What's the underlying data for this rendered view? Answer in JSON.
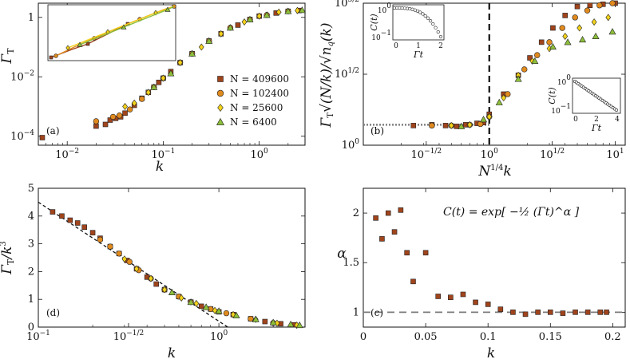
{
  "colors": {
    "N409600": "#a0441c",
    "N102400": "#e08a1e",
    "N25600": "#f3d21a",
    "N6400": "#8dbf3a",
    "markerEdge": "#222222",
    "dotted": "#808080",
    "dashed_c": "#7a7a7a"
  },
  "chart_data": [
    {
      "id": "a",
      "panel_label": "(a)",
      "type": "scatter",
      "xscale": "log",
      "yscale": "log",
      "xlim": [
        0.005,
        3.0
      ],
      "ylim": [
        5e-05,
        3.0
      ],
      "xlabel": "k",
      "ylabel": "Γ_T",
      "xticks": [
        0.01,
        0.1,
        1
      ],
      "xtick_labels": [
        "10^{-2}",
        "10^{-1}",
        "10^{0}"
      ],
      "yticks": [
        0.0001,
        0.01,
        1
      ],
      "ytick_labels": [
        "10^{-4}",
        "10^{-2}",
        "1"
      ],
      "legend": [
        "N = 409600",
        "N = 102400",
        "N = 25600",
        "N = 6400"
      ],
      "legend_position": "bottom-right",
      "series": [
        {
          "name": "N = 409600",
          "x": [
            0.0055,
            0.02,
            0.025,
            0.028,
            0.032,
            0.036,
            0.04,
            0.05,
            0.06,
            0.07,
            0.08,
            0.09,
            0.1,
            0.12,
            0.15,
            0.2,
            0.3,
            0.4,
            0.6,
            0.8,
            1.0,
            1.5,
            2.0,
            2.6
          ],
          "y": [
            9e-05,
            0.00022,
            0.00025,
            0.00035,
            0.0004,
            0.00045,
            0.0006,
            0.0011,
            0.0019,
            0.003,
            0.0045,
            0.0065,
            0.009,
            0.015,
            0.03,
            0.06,
            0.16,
            0.28,
            0.55,
            0.85,
            1.1,
            1.4,
            1.6,
            1.7
          ]
        },
        {
          "name": "N = 102400",
          "x": [
            0.02,
            0.03,
            0.035,
            0.045,
            0.06,
            0.08,
            0.1,
            0.15,
            0.2,
            0.3,
            0.5,
            0.8,
            1.2,
            2.0
          ],
          "y": [
            0.00032,
            0.00045,
            0.0005,
            0.0008,
            0.0018,
            0.0045,
            0.009,
            0.03,
            0.06,
            0.16,
            0.45,
            0.85,
            1.2,
            1.6
          ]
        },
        {
          "name": "N = 25600",
          "x": [
            0.04,
            0.05,
            0.07,
            0.1,
            0.15,
            0.25,
            0.4,
            0.7,
            1.0,
            1.6,
            2.5
          ],
          "y": [
            0.001,
            0.0013,
            0.003,
            0.009,
            0.03,
            0.1,
            0.28,
            0.7,
            1.1,
            1.5,
            1.7
          ]
        },
        {
          "name": "N = 6400",
          "x": [
            0.08,
            0.12,
            0.2,
            0.3,
            0.5,
            0.8,
            1.2,
            2.0,
            2.8
          ],
          "y": [
            0.0045,
            0.013,
            0.06,
            0.16,
            0.45,
            0.85,
            1.2,
            1.6,
            1.75
          ]
        }
      ],
      "inset": {
        "description": "zoom of upper-right region with fitted curves",
        "colors": [
          "#a0441c",
          "#e08a1e",
          "#f3d21a",
          "#8dbf3a"
        ]
      }
    },
    {
      "id": "b",
      "panel_label": "(b)",
      "type": "scatter",
      "xscale": "log",
      "yscale": "log",
      "xlim": [
        0.1,
        12.0
      ],
      "ylim": [
        1.0,
        1000.0
      ],
      "xlabel": "N^{1/4} k",
      "ylabel": "Γ_T √(N/k) / √(n_q(k))",
      "xticks": [
        0.316,
        1.0,
        3.16,
        10.0
      ],
      "xtick_labels": [
        "10^{-1/2}",
        "10^{0}",
        "10^{1/2}",
        "10^{1}"
      ],
      "yticks": [
        1.0,
        31.6,
        1000.0
      ],
      "ytick_labels": [
        "10^{0}",
        "10^{1/2}",
        "10^{3/2}"
      ],
      "vertical_dashed_line_x": 1.0,
      "horizontal_dotted_line_y": 2.7,
      "series": [
        {
          "name": "N = 409600",
          "x": [
            0.25,
            0.35,
            0.45,
            0.55,
            0.65,
            0.8,
            0.9,
            1.0,
            1.3,
            1.7,
            2.1,
            2.6,
            3.2,
            4.0,
            5.0,
            6.3,
            8.0,
            10.0
          ],
          "y": [
            2.6,
            2.7,
            2.6,
            2.5,
            2.7,
            2.9,
            3.0,
            4.5,
            12,
            30,
            70,
            150,
            300,
            550,
            850,
            900,
            950,
            1000
          ]
        },
        {
          "name": "N = 102400",
          "x": [
            0.35,
            0.5,
            0.7,
            0.85,
            1.0,
            1.4,
            1.9,
            2.4,
            3.0,
            3.8,
            4.8,
            6.0,
            7.5,
            9.5
          ],
          "y": [
            2.6,
            2.6,
            2.7,
            2.8,
            4,
            12,
            40,
            80,
            150,
            300,
            500,
            700,
            900,
            1000
          ]
        },
        {
          "name": "N = 25600",
          "x": [
            0.5,
            0.7,
            1.0,
            1.3,
            1.7,
            2.2,
            3.0,
            4.0,
            5.2,
            6.8,
            8.8
          ],
          "y": [
            2.6,
            2.7,
            4,
            10,
            30,
            60,
            110,
            200,
            300,
            400,
            500
          ]
        },
        {
          "name": "N = 6400",
          "x": [
            0.6,
            0.9,
            1.2,
            1.7,
            2.3,
            3.2,
            4.2,
            5.5,
            7.0,
            9.5
          ],
          "y": [
            2.5,
            3.5,
            8,
            25,
            60,
            120,
            150,
            170,
            200,
            250
          ]
        }
      ],
      "inset1": {
        "ylabel": "C(t)",
        "xlabel": "Γt",
        "xticks": [
          "0",
          "1",
          "2"
        ],
        "yticks": [
          "10^{0}",
          "10^{-1}"
        ]
      },
      "inset2": {
        "ylabel": "C(t)",
        "xlabel": "Γt",
        "xticks": [
          "0",
          "2",
          "4"
        ],
        "yticks": [
          "10^{0}",
          "10^{-1}"
        ]
      }
    },
    {
      "id": "d",
      "panel_label": "(d)",
      "type": "scatter",
      "xscale": "log",
      "yscale": "linear",
      "xlim": [
        0.1,
        3.0
      ],
      "ylim": [
        0,
        5
      ],
      "xlabel": "k",
      "ylabel": "Γ_T / k^3",
      "xticks": [
        0.1,
        0.316,
        1.0
      ],
      "xtick_labels": [
        "10^{-1}",
        "10^{-1/2}",
        "10^{0}"
      ],
      "yticks": [
        0,
        1,
        2,
        3,
        4,
        5
      ],
      "ytick_labels": [
        "0",
        "1",
        "2",
        "3",
        "4",
        "5"
      ],
      "dashed_line": {
        "x": [
          0.1,
          1.12
        ],
        "y": [
          4.5,
          0
        ]
      },
      "series": [
        {
          "name": "N = 409600",
          "x": [
            0.12,
            0.135,
            0.15,
            0.165,
            0.18,
            0.2,
            0.22,
            0.25,
            0.28,
            0.31,
            0.35,
            0.4,
            0.45,
            0.5,
            0.6,
            0.7,
            0.8,
            0.9,
            1.0,
            1.2,
            1.5,
            1.8,
            2.2,
            2.6
          ],
          "y": [
            4.15,
            4.0,
            3.85,
            3.75,
            3.6,
            3.4,
            3.2,
            2.9,
            2.65,
            2.4,
            2.1,
            1.8,
            1.55,
            1.35,
            1.1,
            0.9,
            0.75,
            0.65,
            0.55,
            0.45,
            0.3,
            0.2,
            0.12,
            0.08
          ]
        },
        {
          "name": "N = 102400",
          "x": [
            0.22,
            0.25,
            0.28,
            0.32,
            0.36,
            0.42,
            0.5,
            0.6,
            0.7,
            0.9,
            1.1,
            1.5,
            2.0
          ],
          "y": [
            3.15,
            2.9,
            2.65,
            2.35,
            2.05,
            1.75,
            1.35,
            1.1,
            0.9,
            0.65,
            0.5,
            0.3,
            0.15
          ]
        },
        {
          "name": "N = 25600",
          "x": [
            0.3,
            0.35,
            0.42,
            0.5,
            0.62,
            0.75,
            0.95,
            1.2,
            1.6,
            2.1,
            2.7
          ],
          "y": [
            2.45,
            2.1,
            1.75,
            1.35,
            1.05,
            0.85,
            0.6,
            0.45,
            0.28,
            0.14,
            0.07
          ]
        },
        {
          "name": "N = 6400",
          "x": [
            0.55,
            0.7,
            0.85,
            1.0,
            1.25,
            1.6,
            2.0,
            2.5,
            2.8
          ],
          "y": [
            1.25,
            0.9,
            0.72,
            0.58,
            0.42,
            0.28,
            0.17,
            0.1,
            0.07
          ]
        }
      ]
    },
    {
      "id": "c",
      "panel_label": "(c)",
      "type": "scatter",
      "xscale": "linear",
      "yscale": "linear",
      "xlim": [
        0,
        0.21
      ],
      "ylim": [
        0.85,
        2.25
      ],
      "xlabel": "k",
      "ylabel": "α",
      "xticks": [
        0,
        0.05,
        0.1,
        0.15,
        0.2
      ],
      "xtick_labels": [
        "0",
        "0.05",
        "0.1",
        "0.15",
        "0.2"
      ],
      "yticks": [
        1,
        1.5,
        2
      ],
      "ytick_labels": [
        "1",
        "1.5",
        "2"
      ],
      "annotation": "C(t) = exp[ −½ (Γt)^α ]",
      "horizontal_dashed_line_y": 1.0,
      "series": [
        {
          "name": "N = 409600",
          "x": [
            0.01,
            0.015,
            0.02,
            0.025,
            0.03,
            0.035,
            0.04,
            0.05,
            0.06,
            0.07,
            0.08,
            0.09,
            0.1,
            0.11,
            0.12,
            0.13,
            0.14,
            0.15,
            0.16,
            0.17,
            0.18,
            0.19,
            0.195
          ],
          "y": [
            1.95,
            1.74,
            2.0,
            1.81,
            2.03,
            1.6,
            1.31,
            1.6,
            1.16,
            1.15,
            1.18,
            1.1,
            1.08,
            1.03,
            1.0,
            0.98,
            1.0,
            1.0,
            0.99,
            1.0,
            1.0,
            1.0,
            1.0
          ]
        }
      ]
    }
  ]
}
